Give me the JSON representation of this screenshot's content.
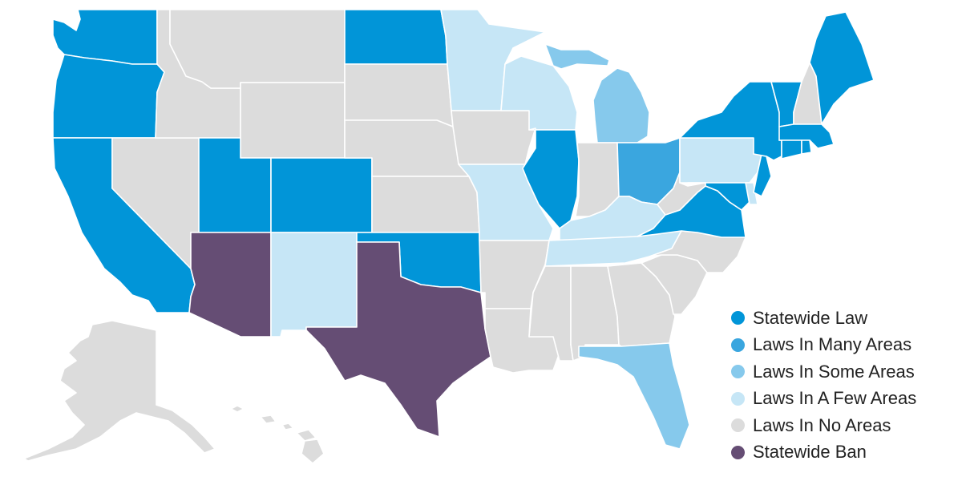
{
  "map": {
    "categories": [
      {
        "id": "statewide-law",
        "label": "Statewide Law",
        "color": "#0195d8"
      },
      {
        "id": "many",
        "label": "Laws In Many Areas",
        "color": "#3aa6df"
      },
      {
        "id": "some",
        "label": "Laws In Some Areas",
        "color": "#86c9ec"
      },
      {
        "id": "few",
        "label": "Laws In A Few Areas",
        "color": "#c6e6f6"
      },
      {
        "id": "none",
        "label": "Laws In No Areas",
        "color": "#dcdcdc"
      },
      {
        "id": "ban",
        "label": "Statewide Ban",
        "color": "#654d74"
      }
    ],
    "states": [
      {
        "id": "washington",
        "category": "statewide-law"
      },
      {
        "id": "oregon",
        "category": "statewide-law"
      },
      {
        "id": "california",
        "category": "statewide-law"
      },
      {
        "id": "nevada",
        "category": "none"
      },
      {
        "id": "idaho",
        "category": "none"
      },
      {
        "id": "montana",
        "category": "none"
      },
      {
        "id": "wyoming",
        "category": "none"
      },
      {
        "id": "utah",
        "category": "statewide-law"
      },
      {
        "id": "colorado",
        "category": "statewide-law"
      },
      {
        "id": "arizona",
        "category": "ban"
      },
      {
        "id": "new-mexico",
        "category": "few"
      },
      {
        "id": "north-dakota",
        "category": "statewide-law"
      },
      {
        "id": "south-dakota",
        "category": "none"
      },
      {
        "id": "nebraska",
        "category": "none"
      },
      {
        "id": "kansas",
        "category": "none"
      },
      {
        "id": "oklahoma",
        "category": "statewide-law"
      },
      {
        "id": "texas",
        "category": "ban"
      },
      {
        "id": "minnesota",
        "category": "few"
      },
      {
        "id": "iowa",
        "category": "none"
      },
      {
        "id": "missouri",
        "category": "few"
      },
      {
        "id": "arkansas",
        "category": "none"
      },
      {
        "id": "louisiana",
        "category": "none"
      },
      {
        "id": "wisconsin",
        "category": "few"
      },
      {
        "id": "illinois",
        "category": "statewide-law"
      },
      {
        "id": "michigan",
        "category": "some"
      },
      {
        "id": "indiana",
        "category": "none"
      },
      {
        "id": "ohio",
        "category": "many"
      },
      {
        "id": "kentucky",
        "category": "few"
      },
      {
        "id": "tennessee",
        "category": "few"
      },
      {
        "id": "mississippi",
        "category": "none"
      },
      {
        "id": "alabama",
        "category": "none"
      },
      {
        "id": "georgia",
        "category": "none"
      },
      {
        "id": "florida",
        "category": "some"
      },
      {
        "id": "south-carolina",
        "category": "none"
      },
      {
        "id": "north-carolina",
        "category": "none"
      },
      {
        "id": "virginia",
        "category": "statewide-law"
      },
      {
        "id": "west-virginia",
        "category": "none"
      },
      {
        "id": "pennsylvania",
        "category": "few"
      },
      {
        "id": "new-york",
        "category": "statewide-law"
      },
      {
        "id": "vermont",
        "category": "statewide-law"
      },
      {
        "id": "new-hampshire",
        "category": "none"
      },
      {
        "id": "maine",
        "category": "statewide-law"
      },
      {
        "id": "massachusetts",
        "category": "statewide-law"
      },
      {
        "id": "rhode-island",
        "category": "statewide-law"
      },
      {
        "id": "connecticut",
        "category": "statewide-law"
      },
      {
        "id": "new-jersey",
        "category": "statewide-law"
      },
      {
        "id": "delaware",
        "category": "few"
      },
      {
        "id": "maryland",
        "category": "statewide-law"
      },
      {
        "id": "alaska",
        "category": "none"
      },
      {
        "id": "hawaii",
        "category": "none"
      }
    ]
  }
}
